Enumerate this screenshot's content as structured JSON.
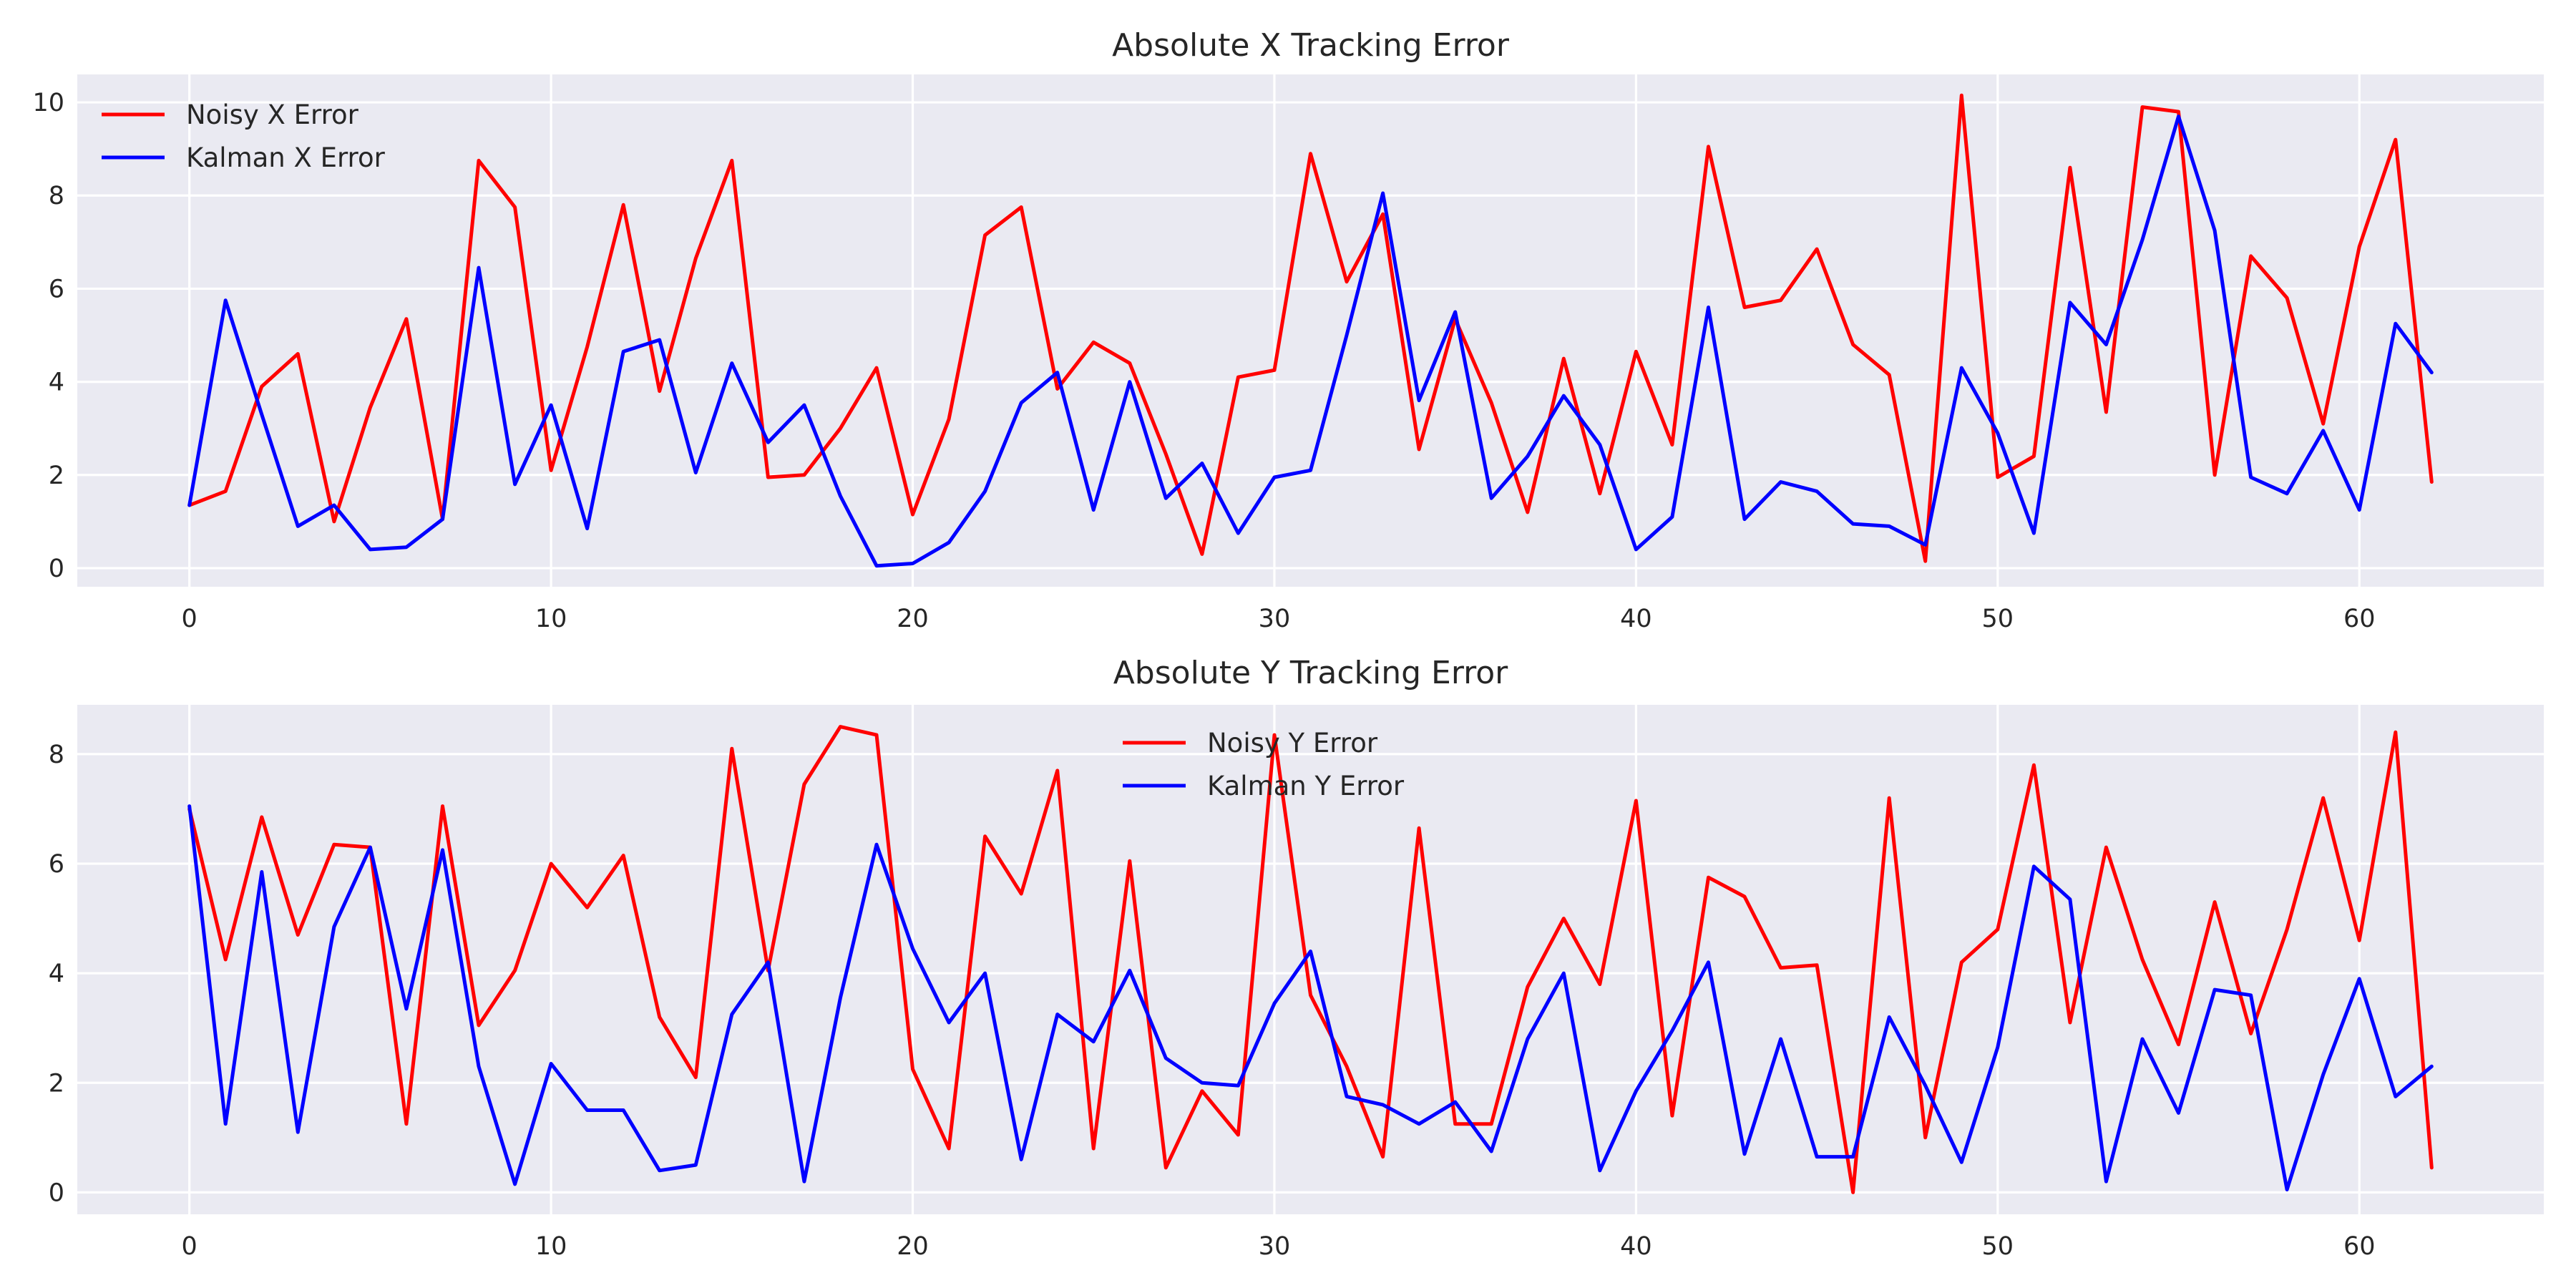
{
  "chart_data": [
    {
      "type": "line",
      "title": "Absolute X Tracking Error",
      "xlabel": "",
      "ylabel": "",
      "xlim": [
        -3.1,
        65.1
      ],
      "ylim": [
        -0.4,
        10.6
      ],
      "xticks": [
        0,
        10,
        20,
        30,
        40,
        50,
        60
      ],
      "yticks": [
        0,
        2,
        4,
        6,
        8,
        10
      ],
      "grid": true,
      "legend_position": "top-left",
      "x_start": 0,
      "series": [
        {
          "name": "Noisy X Error",
          "color": "#ff0000",
          "values": [
            1.35,
            1.65,
            3.9,
            4.6,
            1.0,
            3.45,
            5.35,
            1.05,
            8.75,
            7.75,
            2.1,
            4.75,
            7.8,
            3.8,
            6.65,
            8.75,
            1.95,
            2.0,
            3.0,
            4.3,
            1.15,
            3.2,
            7.15,
            7.75,
            3.85,
            4.85,
            4.4,
            2.45,
            0.3,
            4.1,
            4.25,
            8.9,
            6.15,
            7.6,
            2.55,
            5.35,
            3.55,
            1.2,
            4.5,
            1.6,
            4.65,
            2.65,
            9.05,
            5.6,
            5.75,
            6.85,
            4.8,
            4.15,
            0.15,
            10.15,
            1.95,
            2.4,
            8.6,
            3.35,
            9.9,
            9.8,
            2.0,
            6.7,
            5.8,
            3.1,
            6.9,
            9.2,
            1.85
          ]
        },
        {
          "name": "Kalman X Error",
          "color": "#0000ff",
          "values": [
            1.35,
            5.75,
            3.3,
            0.9,
            1.35,
            0.4,
            0.45,
            1.05,
            6.45,
            1.8,
            3.5,
            0.85,
            4.65,
            4.9,
            2.05,
            4.4,
            2.7,
            3.5,
            1.55,
            0.05,
            0.1,
            0.55,
            1.65,
            3.55,
            4.2,
            1.25,
            4.0,
            1.5,
            2.25,
            0.75,
            1.95,
            2.1,
            5.0,
            8.05,
            3.6,
            5.5,
            1.5,
            2.4,
            3.7,
            2.65,
            0.4,
            1.1,
            5.6,
            1.05,
            1.85,
            1.65,
            0.95,
            0.9,
            0.5,
            4.3,
            2.9,
            0.75,
            5.7,
            4.8,
            7.05,
            9.7,
            7.25,
            1.95,
            1.6,
            2.95,
            1.25,
            5.25,
            4.2
          ]
        }
      ]
    },
    {
      "type": "line",
      "title": "Absolute Y Tracking Error",
      "xlabel": "",
      "ylabel": "",
      "xlim": [
        -3.1,
        65.1
      ],
      "ylim": [
        -0.4,
        8.9
      ],
      "xticks": [
        0,
        10,
        20,
        30,
        40,
        50,
        60
      ],
      "yticks": [
        0,
        2,
        4,
        6,
        8
      ],
      "grid": true,
      "legend_position": "top-center",
      "x_start": 0,
      "series": [
        {
          "name": "Noisy Y Error",
          "color": "#ff0000",
          "values": [
            7.0,
            4.25,
            6.85,
            4.7,
            6.35,
            6.3,
            1.25,
            7.05,
            3.05,
            4.05,
            6.0,
            5.2,
            6.15,
            3.2,
            2.1,
            8.1,
            4.05,
            7.45,
            8.5,
            8.35,
            2.25,
            0.8,
            6.5,
            5.45,
            7.7,
            0.8,
            6.05,
            0.45,
            1.85,
            1.05,
            8.35,
            3.6,
            2.3,
            0.65,
            6.65,
            1.25,
            1.25,
            3.75,
            5.0,
            3.8,
            7.15,
            1.4,
            5.75,
            5.4,
            4.1,
            4.15,
            0.0,
            7.2,
            1.0,
            4.2,
            4.8,
            7.8,
            3.1,
            6.3,
            4.25,
            2.7,
            5.3,
            2.9,
            4.8,
            7.2,
            4.6,
            8.4,
            0.45
          ]
        },
        {
          "name": "Kalman Y Error",
          "color": "#0000ff",
          "values": [
            7.05,
            1.25,
            5.85,
            1.1,
            4.85,
            6.3,
            3.35,
            6.25,
            2.3,
            0.15,
            2.35,
            1.5,
            1.5,
            0.4,
            0.5,
            3.25,
            4.2,
            0.2,
            3.55,
            6.35,
            4.45,
            3.1,
            4.0,
            0.6,
            3.25,
            2.75,
            4.05,
            2.45,
            2.0,
            1.95,
            3.45,
            4.4,
            1.75,
            1.6,
            1.25,
            1.65,
            0.75,
            2.8,
            4.0,
            0.4,
            1.85,
            2.95,
            4.2,
            0.7,
            2.8,
            0.65,
            0.65,
            3.2,
            1.95,
            0.55,
            2.65,
            5.95,
            5.35,
            0.2,
            2.8,
            1.45,
            3.7,
            3.6,
            0.05,
            2.15,
            3.9,
            1.75,
            2.3
          ]
        }
      ]
    }
  ]
}
